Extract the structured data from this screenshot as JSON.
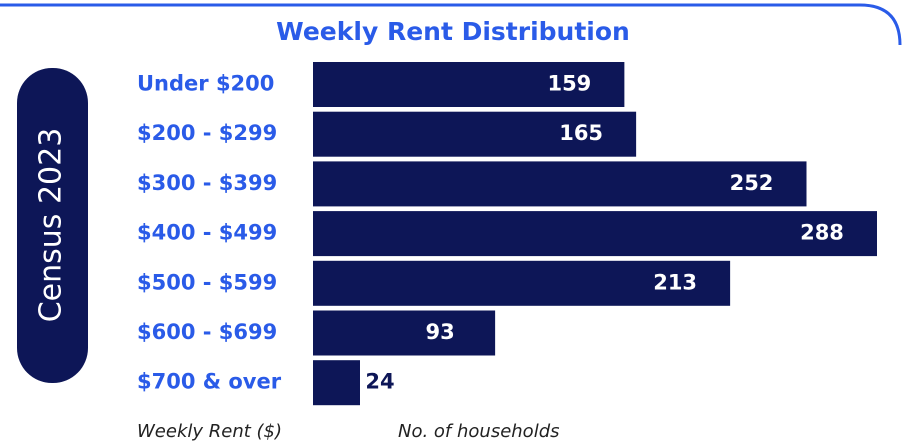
{
  "chart_data": {
    "type": "bar",
    "orientation": "horizontal",
    "title": "Weekly Rent Distribution",
    "side_label": "Census 2023",
    "categories": [
      "Under $200",
      "$200 - $299",
      "$300 - $399",
      "$400 - $499",
      "$500 - $599",
      "$600 - $699",
      "$700 & over"
    ],
    "values": [
      159,
      165,
      252,
      288,
      213,
      93,
      24
    ],
    "color": "#0d1657",
    "label_color": "#2a5be8",
    "ylabel": "Weekly Rent ($)",
    "xlabel": "No. of households"
  }
}
